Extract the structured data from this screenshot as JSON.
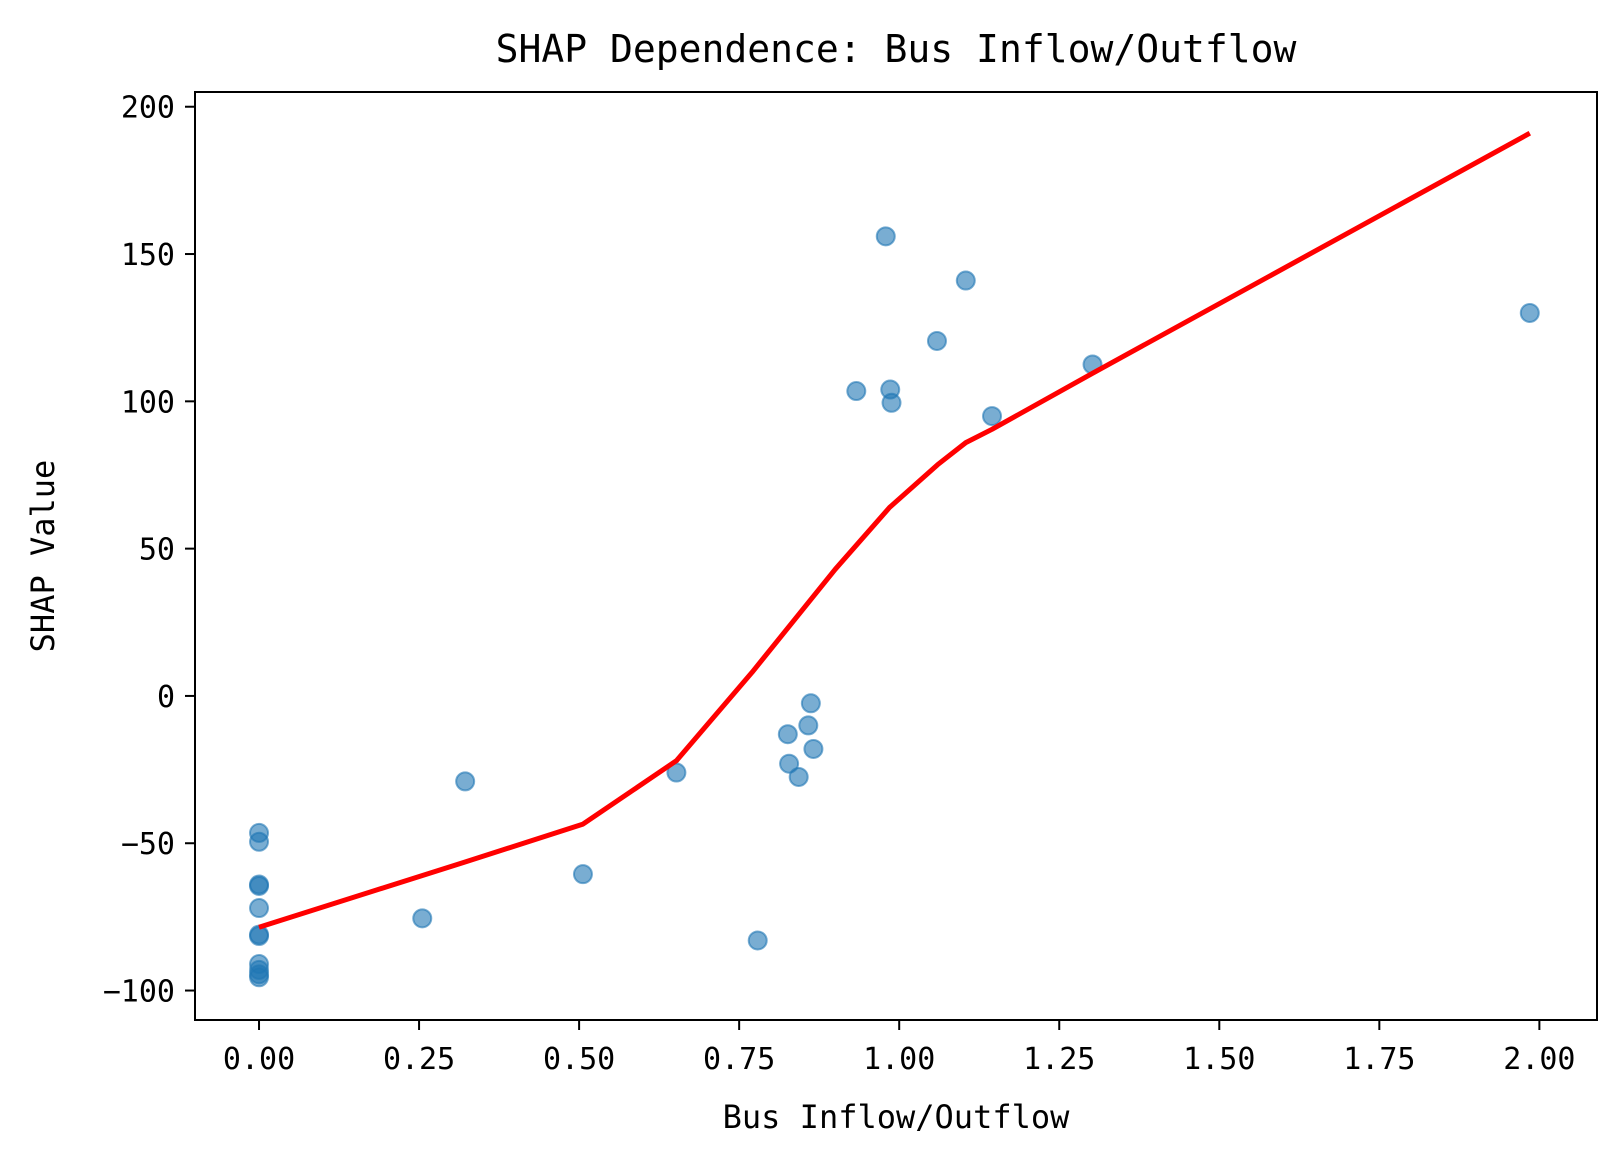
{
  "chart_data": {
    "type": "scatter",
    "title": "SHAP Dependence: Bus Inflow/Outflow",
    "xlabel": "Bus Inflow/Outflow",
    "ylabel": "SHAP Value",
    "xlim": [
      -0.1,
      2.09
    ],
    "ylim": [
      -110,
      205
    ],
    "xticks": [
      0,
      0.25,
      0.5,
      0.75,
      1.0,
      1.25,
      1.5,
      1.75,
      2.0
    ],
    "xtick_labels": [
      "0.00",
      "0.25",
      "0.50",
      "0.75",
      "1.00",
      "1.25",
      "1.50",
      "1.75",
      "2.00"
    ],
    "yticks": [
      -100,
      -50,
      0,
      50,
      100,
      150,
      200
    ],
    "ytick_labels": [
      "−100",
      "−50",
      "0",
      "50",
      "100",
      "150",
      "200"
    ],
    "grid": false,
    "colors": {
      "points": "#1f77b4",
      "trend": "#ff0000"
    },
    "series": [
      {
        "type": "scatter",
        "points": [
          [
            0.0,
            -46.5
          ],
          [
            0.0,
            -49.5
          ],
          [
            0.0,
            -64
          ],
          [
            0.0,
            -64.5
          ],
          [
            0.0,
            -72
          ],
          [
            0.0,
            -81
          ],
          [
            0.0,
            -81.5
          ],
          [
            0.0,
            -91
          ],
          [
            0.0,
            -93
          ],
          [
            0.0,
            -94.5
          ],
          [
            0.0,
            -95.5
          ],
          [
            0.255,
            -75.5
          ],
          [
            0.322,
            -29
          ],
          [
            0.506,
            -60.5
          ],
          [
            0.652,
            -26
          ],
          [
            0.779,
            -83
          ],
          [
            0.826,
            -13
          ],
          [
            0.828,
            -23
          ],
          [
            0.843,
            -27.5
          ],
          [
            0.858,
            -10
          ],
          [
            0.862,
            -2.5
          ],
          [
            0.866,
            -18
          ],
          [
            0.933,
            103.5
          ],
          [
            0.979,
            156
          ],
          [
            0.986,
            104
          ],
          [
            0.988,
            99.5
          ],
          [
            1.059,
            120.5
          ],
          [
            1.104,
            141
          ],
          [
            1.145,
            95
          ],
          [
            1.302,
            112.5
          ],
          [
            1.985,
            130
          ]
        ]
      },
      {
        "type": "line",
        "points": [
          [
            0.0,
            -78.5
          ],
          [
            0.32,
            -56.5
          ],
          [
            0.506,
            -43.5
          ],
          [
            0.652,
            -22
          ],
          [
            0.77,
            8
          ],
          [
            0.9,
            43
          ],
          [
            0.985,
            64
          ],
          [
            1.06,
            78.5
          ],
          [
            1.104,
            86
          ],
          [
            1.145,
            90.5
          ],
          [
            1.302,
            109.5
          ],
          [
            1.985,
            191
          ]
        ]
      }
    ]
  }
}
